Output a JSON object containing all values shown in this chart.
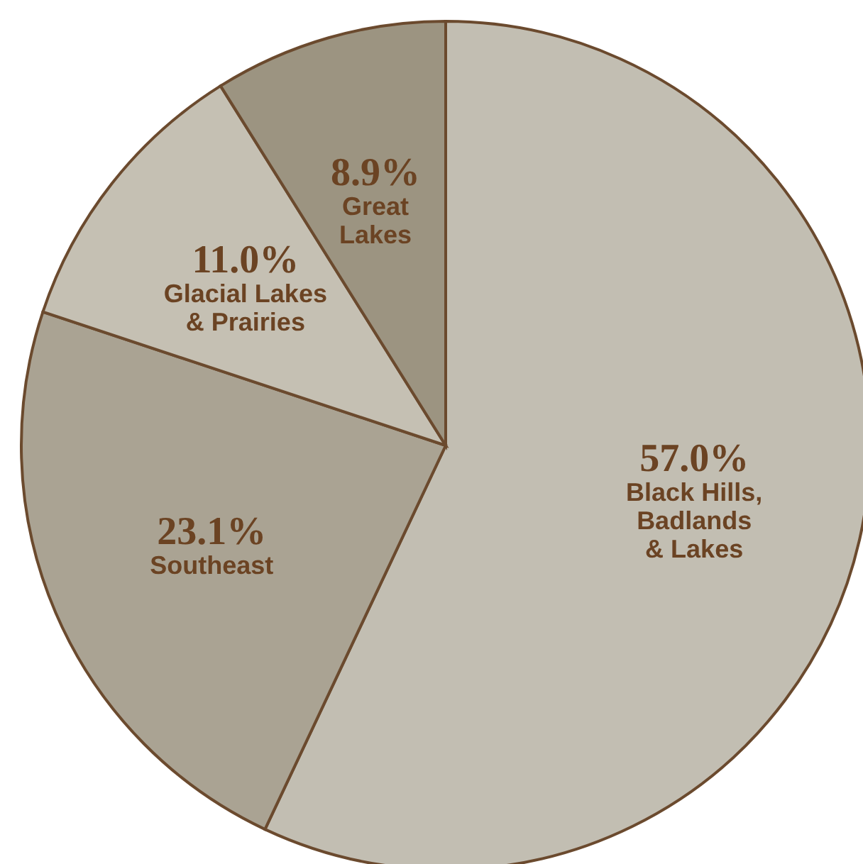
{
  "chart_data": {
    "type": "pie",
    "categories": [
      "Black Hills,\nBadlands\n& Lakes",
      "Southeast",
      "Glacial Lakes\n& Prairies",
      "Great\nLakes"
    ],
    "values": [
      57.0,
      23.1,
      11.0,
      8.9
    ],
    "colors": [
      "#c2beb2",
      "#aaa393",
      "#c5c0b3",
      "#9c9481"
    ],
    "value_labels": [
      "57.0%",
      "23.1%",
      "11.0%",
      "8.9%"
    ]
  }
}
